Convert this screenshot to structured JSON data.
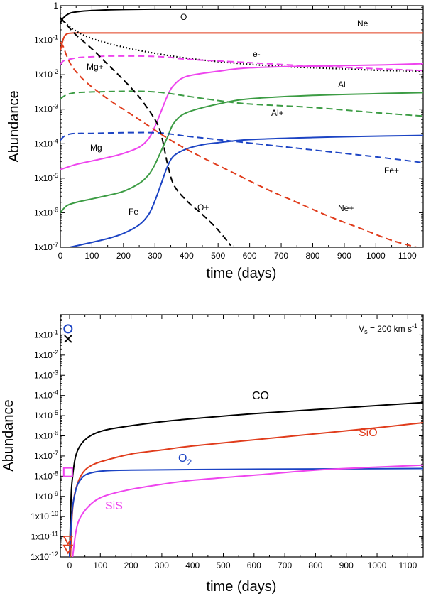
{
  "colors": {
    "black": "#000000",
    "red": "#e03c1c",
    "magenta": "#ee44ee",
    "green": "#3c9c44",
    "blue": "#1c44c4"
  },
  "chart_data": [
    {
      "type": "line",
      "xlabel": "time (days)",
      "ylabel": "Abundance",
      "xlim": [
        0,
        1150
      ],
      "ylim_log10": [
        -7,
        0
      ],
      "xticks": [
        "0",
        "100",
        "200",
        "300",
        "400",
        "500",
        "600",
        "700",
        "800",
        "900",
        "1000",
        "1100"
      ],
      "yticks": [
        "1",
        "1x10-1",
        "1x10-2",
        "1x10-3",
        "1x10-4",
        "1x10-5",
        "1x10-6",
        "1x10-7"
      ],
      "series": [
        {
          "name": "O",
          "color": "black",
          "dash": "solid",
          "x": [
            0,
            10,
            30,
            60,
            100,
            150,
            200,
            300,
            400,
            600,
            800,
            1000,
            1150
          ],
          "log10": [
            -0.5,
            -0.35,
            -0.22,
            -0.17,
            -0.14,
            -0.12,
            -0.11,
            -0.1,
            -0.1,
            -0.1,
            -0.1,
            -0.1,
            -0.1
          ]
        },
        {
          "name": "Ne",
          "color": "red",
          "dash": "solid",
          "x": [
            0,
            10,
            20,
            40,
            80,
            150,
            300,
            600,
            1150
          ],
          "log10": [
            -1.3,
            -0.95,
            -0.82,
            -0.79,
            -0.79,
            -0.79,
            -0.79,
            -0.79,
            -0.79
          ]
        },
        {
          "name": "e-",
          "color": "black",
          "dash": "dot",
          "x": [
            0,
            10,
            40,
            100,
            200,
            300,
            400,
            500,
            600,
            700,
            800,
            900,
            1000,
            1150
          ],
          "log10": [
            -0.35,
            -0.45,
            -0.68,
            -0.95,
            -1.2,
            -1.38,
            -1.52,
            -1.62,
            -1.7,
            -1.76,
            -1.8,
            -1.83,
            -1.87,
            -1.9
          ]
        },
        {
          "name": "Mg+",
          "color": "magenta",
          "dash": "dash",
          "x": [
            0,
            10,
            30,
            60,
            100,
            150,
            200,
            250,
            300,
            350,
            400,
            600,
            800,
            1150
          ],
          "log10": [
            -1.7,
            -1.6,
            -1.55,
            -1.5,
            -1.48,
            -1.46,
            -1.46,
            -1.46,
            -1.47,
            -1.5,
            -1.55,
            -1.65,
            -1.75,
            -1.88
          ]
        },
        {
          "name": "Mg",
          "color": "magenta",
          "dash": "solid",
          "x": [
            0,
            50,
            100,
            150,
            200,
            250,
            280,
            300,
            320,
            340,
            360,
            400,
            500,
            600,
            800,
            1000,
            1150
          ],
          "log10": [
            -4.75,
            -4.6,
            -4.5,
            -4.4,
            -4.28,
            -4.1,
            -3.85,
            -3.5,
            -3.05,
            -2.6,
            -2.3,
            -2.05,
            -1.9,
            -1.8,
            -1.75,
            -1.72,
            -1.68
          ]
        },
        {
          "name": "Al",
          "color": "green",
          "dash": "solid",
          "x": [
            0,
            20,
            50,
            100,
            150,
            200,
            250,
            280,
            300,
            320,
            340,
            360,
            400,
            500,
            600,
            800,
            1000,
            1150
          ],
          "log10": [
            -6,
            -5.8,
            -5.7,
            -5.6,
            -5.5,
            -5.38,
            -5.15,
            -4.9,
            -4.6,
            -4.2,
            -3.8,
            -3.4,
            -3.1,
            -2.85,
            -2.7,
            -2.6,
            -2.55,
            -2.52
          ]
        },
        {
          "name": "Al+",
          "color": "green",
          "dash": "dash",
          "x": [
            0,
            20,
            50,
            100,
            150,
            200,
            250,
            300,
            350,
            400,
            500,
            600,
            800,
            1000,
            1150
          ],
          "log10": [
            -2.7,
            -2.58,
            -2.52,
            -2.5,
            -2.49,
            -2.48,
            -2.48,
            -2.5,
            -2.55,
            -2.62,
            -2.75,
            -2.85,
            -2.95,
            -3.1,
            -3.2
          ]
        },
        {
          "name": "Fe",
          "color": "blue",
          "dash": "solid",
          "x": [
            30,
            80,
            150,
            200,
            250,
            280,
            300,
            320,
            340,
            360,
            400,
            450,
            500,
            600,
            800,
            1000,
            1150
          ],
          "log10": [
            -7,
            -6.9,
            -6.75,
            -6.6,
            -6.35,
            -6.05,
            -5.65,
            -5.15,
            -4.65,
            -4.35,
            -4.15,
            -4.03,
            -3.97,
            -3.88,
            -3.82,
            -3.78,
            -3.76
          ]
        },
        {
          "name": "Fe+",
          "color": "blue",
          "dash": "dash",
          "x": [
            0,
            10,
            30,
            60,
            100,
            200,
            300,
            350,
            400,
            500,
            600,
            800,
            1000,
            1150
          ],
          "log10": [
            -3.9,
            -3.8,
            -3.72,
            -3.7,
            -3.7,
            -3.68,
            -3.68,
            -3.72,
            -3.78,
            -3.88,
            -3.98,
            -4.18,
            -4.38,
            -4.55
          ]
        },
        {
          "name": "O+",
          "color": "black",
          "dash": "dash",
          "x": [
            0,
            20,
            50,
            100,
            150,
            200,
            250,
            300,
            320,
            340,
            360,
            400,
            450,
            500,
            540
          ],
          "log10": [
            -0.35,
            -0.55,
            -0.85,
            -1.25,
            -1.7,
            -2.15,
            -2.65,
            -3.3,
            -3.75,
            -4.6,
            -5.2,
            -5.65,
            -6.05,
            -6.5,
            -6.95
          ]
        },
        {
          "name": "Ne+",
          "color": "red",
          "dash": "dash",
          "x": [
            0,
            10,
            20,
            40,
            80,
            150,
            250,
            350,
            450,
            550,
            650,
            750,
            850,
            950,
            1050,
            1150
          ],
          "log10": [
            -1.05,
            -1.2,
            -1.45,
            -1.8,
            -2.2,
            -2.7,
            -3.3,
            -3.9,
            -4.4,
            -4.85,
            -5.3,
            -5.7,
            -6.1,
            -6.45,
            -6.8,
            -7.05
          ]
        }
      ],
      "annotations": [
        {
          "text": "O",
          "color": "black"
        },
        {
          "text": "Ne",
          "color": "black"
        },
        {
          "text": "e-",
          "color": "black"
        },
        {
          "text": "Mg+",
          "color": "black"
        },
        {
          "text": "Al",
          "color": "black"
        },
        {
          "text": "Al+",
          "color": "black"
        },
        {
          "text": "Mg",
          "color": "black"
        },
        {
          "text": "Fe+",
          "color": "black"
        },
        {
          "text": "O+",
          "color": "black"
        },
        {
          "text": "Fe",
          "color": "black"
        },
        {
          "text": "Ne+",
          "color": "black"
        }
      ]
    },
    {
      "type": "line",
      "xlabel": "time (days)",
      "ylabel": "Abundance",
      "xlim": [
        -30,
        1150
      ],
      "ylim_log10": [
        -12,
        0
      ],
      "xticks": [
        "0",
        "100",
        "200",
        "300",
        "400",
        "500",
        "600",
        "700",
        "800",
        "900",
        "1000",
        "1100"
      ],
      "yticks": [
        "1x10-1",
        "1x10-2",
        "1x10-3",
        "1x10-4",
        "1x10-5",
        "1x10-6",
        "1x10-7",
        "1x10-8",
        "1x10-9",
        "1x10-10",
        "1x10-11",
        "1x10-12"
      ],
      "annotation_box": {
        "prefix": "V",
        "sub": "s",
        "mid": " = 200 km s",
        "sup": "-1"
      },
      "series": [
        {
          "name": "CO",
          "color": "black",
          "dash": "solid",
          "x": [
            0,
            5,
            10,
            15,
            20,
            30,
            50,
            80,
            120,
            200,
            300,
            400,
            600,
            800,
            1000,
            1150
          ],
          "log10": [
            -12,
            -9,
            -8,
            -7.4,
            -7,
            -6.6,
            -6.2,
            -5.9,
            -5.7,
            -5.5,
            -5.3,
            -5.15,
            -4.9,
            -4.7,
            -4.5,
            -4.35
          ]
        },
        {
          "name": "SiO",
          "color": "red",
          "dash": "solid",
          "x": [
            3,
            8,
            15,
            30,
            50,
            80,
            120,
            200,
            300,
            400,
            600,
            800,
            1000,
            1150
          ],
          "log10": [
            -12,
            -10,
            -9,
            -8.2,
            -7.7,
            -7.4,
            -7.2,
            -6.9,
            -6.7,
            -6.5,
            -6.2,
            -5.9,
            -5.6,
            -5.35
          ]
        },
        {
          "name": "O2",
          "color": "blue",
          "dash": "solid",
          "x": [
            0,
            5,
            10,
            20,
            30,
            50,
            80,
            120,
            200,
            400,
            800,
            1150
          ],
          "log10": [
            -12,
            -10.5,
            -9.5,
            -8.7,
            -8.3,
            -7.95,
            -7.8,
            -7.73,
            -7.7,
            -7.67,
            -7.64,
            -7.62
          ]
        },
        {
          "name": "SiS",
          "color": "magenta",
          "dash": "solid",
          "x": [
            10,
            20,
            30,
            50,
            80,
            120,
            200,
            300,
            400,
            600,
            800,
            1000,
            1150
          ],
          "log10": [
            -12,
            -10.8,
            -10.2,
            -9.7,
            -9.25,
            -8.95,
            -8.65,
            -8.4,
            -8.2,
            -7.95,
            -7.7,
            -7.55,
            -7.45
          ]
        }
      ],
      "markers": [
        {
          "symbol": "circle",
          "color": "blue",
          "x": -5,
          "log10": -0.7
        },
        {
          "symbol": "cross",
          "color": "black",
          "x": -5,
          "log10": -1.2
        },
        {
          "symbol": "square",
          "color": "magenta",
          "x": -5,
          "log10": -7.8
        },
        {
          "symbol": "triangle-down",
          "color": "red",
          "x": -5,
          "log10": -11.15
        },
        {
          "symbol": "triangle-down",
          "color": "red",
          "x": -5,
          "log10": -11.6
        }
      ],
      "labels": [
        {
          "text": "CO",
          "color": "black"
        },
        {
          "text": "SiO",
          "color": "red"
        },
        {
          "text": "O",
          "sub": "2",
          "color": "blue"
        },
        {
          "text": "SiS",
          "color": "magenta"
        }
      ]
    }
  ]
}
